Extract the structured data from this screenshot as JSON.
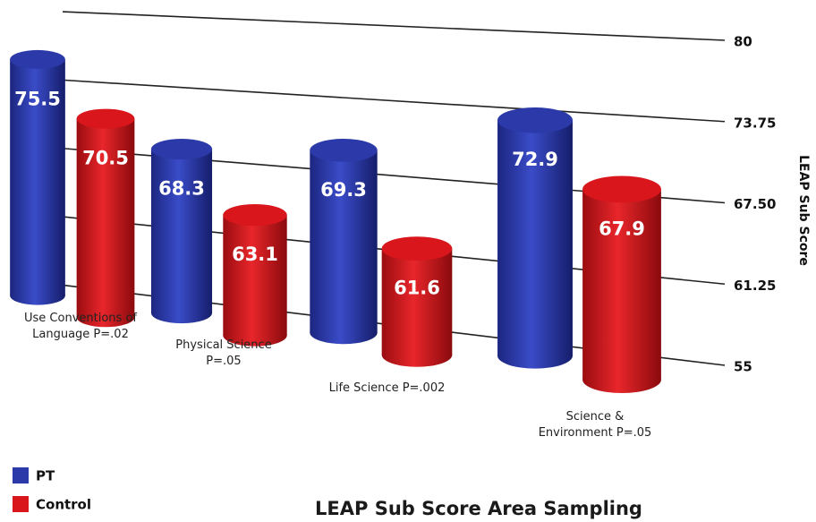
{
  "chart_data": {
    "type": "bar3d",
    "title": "LEAP Sub Score Area Sampling",
    "y_label": "LEAP Sub Score",
    "categories": [
      "Use Conventions of Language P=.02",
      "Physical Science P=.05",
      "Life Science P=.002",
      "Science & Environment P=.05"
    ],
    "series": [
      {
        "name": "PT",
        "color": "#2b3aa8",
        "values": [
          75.5,
          68.3,
          69.3,
          72.9
        ]
      },
      {
        "name": "Control",
        "color": "#d8161c",
        "values": [
          70.5,
          63.1,
          61.6,
          67.9
        ]
      }
    ],
    "ylim": [
      55,
      80
    ],
    "yticks": [
      55,
      61.25,
      {
        "value": 67.5,
        "label": "67.50"
      },
      73.75,
      80
    ],
    "grid": true
  }
}
